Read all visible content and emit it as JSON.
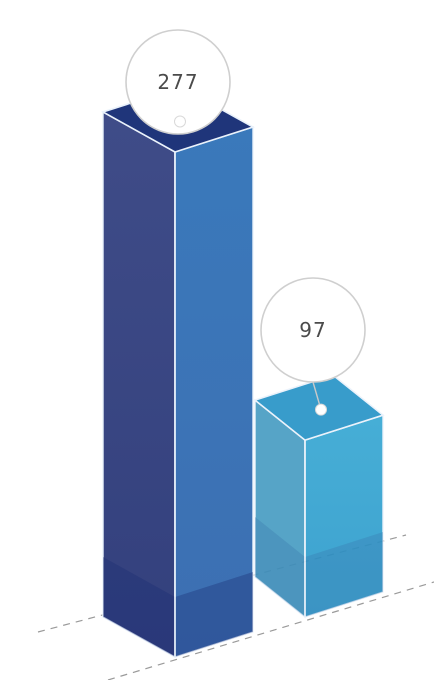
{
  "chart_data": {
    "type": "bar",
    "categories": [
      "",
      ""
    ],
    "values": [
      277,
      97
    ],
    "data_labels": [
      "277",
      "97"
    ],
    "ylim": [
      0,
      277
    ],
    "grid": false,
    "legend": "none",
    "colors": {
      "bar1_front": "#3e7fbe",
      "bar1_side": "#3c4a86",
      "bar1_top": "#1f357a",
      "bar2_front": "#3aa6d0",
      "bar2_side": "#4a9ec3",
      "bar2_top": "#2a95c8",
      "edge": "#eaf2fb",
      "bubble_stroke": "#cfcfcf",
      "bubble_fill": "#ffffff",
      "label_text": "#4b4b4b",
      "ground_dash": "#9a9a9a"
    }
  }
}
